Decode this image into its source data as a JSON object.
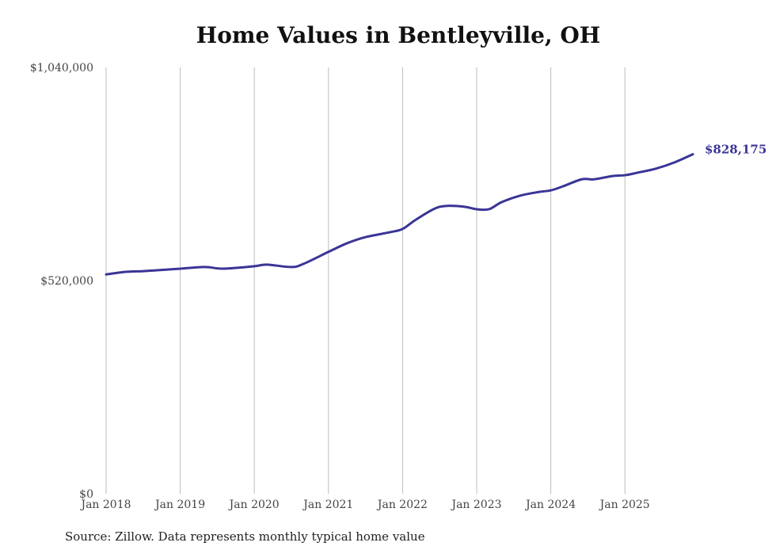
{
  "chart_data": {
    "type": "line",
    "title": "Home Values in Bentleyville, OH",
    "source": "Source: Zillow. Data represents monthly typical home value",
    "xlabel": "",
    "ylabel": "",
    "ylim": [
      0,
      1040000
    ],
    "y_ticks": [
      0,
      520000,
      1040000
    ],
    "y_tick_labels": [
      "$0",
      "$520,000",
      "$1,040,000"
    ],
    "x_tick_years": [
      2018,
      2019,
      2020,
      2021,
      2022,
      2023,
      2024,
      2025
    ],
    "x_tick_labels": [
      "Jan 2018",
      "Jan 2019",
      "Jan 2020",
      "Jan 2021",
      "Jan 2022",
      "Jan 2023",
      "Jan 2024",
      "Jan 2025"
    ],
    "grid": "vertical",
    "line_color": "#3a3596",
    "end_label": "$828,175",
    "series": [
      {
        "name": "Typical home value",
        "x": [
          "2018-01",
          "2018-04",
          "2018-07",
          "2018-09",
          "2019-01",
          "2019-05",
          "2019-08",
          "2020-01",
          "2020-03",
          "2020-07",
          "2020-09",
          "2021-01",
          "2021-04",
          "2021-07",
          "2021-11",
          "2022-01",
          "2022-03",
          "2022-06",
          "2022-08",
          "2022-11",
          "2023-01",
          "2023-03",
          "2023-05",
          "2023-08",
          "2023-11",
          "2024-01",
          "2024-03",
          "2024-06",
          "2024-08",
          "2024-11",
          "2025-01",
          "2025-03",
          "2025-06",
          "2025-09",
          "2025-12"
        ],
        "values": [
          535000,
          541000,
          543000,
          545000,
          549000,
          553000,
          549000,
          555000,
          559000,
          553000,
          561000,
          590000,
          611000,
          626000,
          638000,
          646000,
          667000,
          694000,
          702000,
          700000,
          694000,
          694000,
          711000,
          727000,
          736000,
          740000,
          750000,
          767000,
          767000,
          775000,
          777000,
          783000,
          793000,
          808000,
          828175
        ]
      }
    ]
  }
}
